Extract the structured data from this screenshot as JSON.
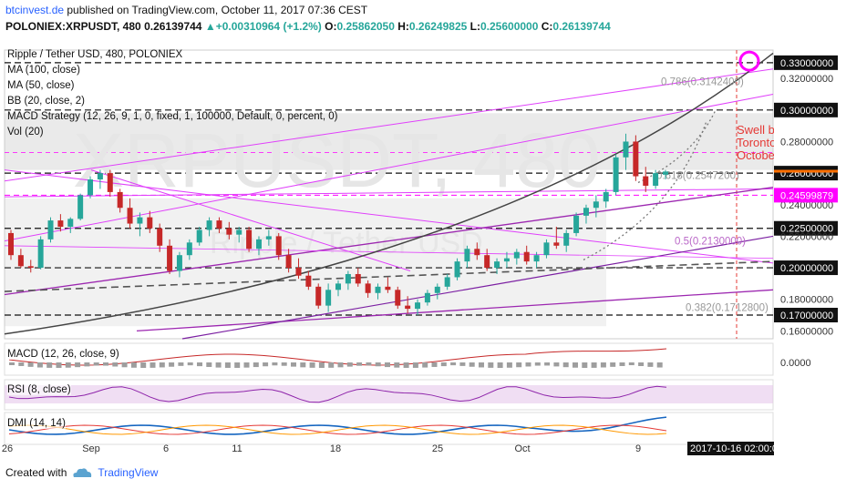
{
  "header": {
    "site": "btcinvest.de",
    "published": " published on TradingView.com, October 11, 2017 07:36 CEST",
    "symbol": "POLONIEX:XRPUSDT, 480",
    "last": "0.26139744",
    "change": "+0.00310964 (+1.2%)",
    "o_label": "O:",
    "o": "0.25862050",
    "h_label": "H:",
    "h": "0.26249825",
    "l_label": "L:",
    "l": "0.25600000",
    "c_label": "C:",
    "c": "0.26139744"
  },
  "overlays": [
    "Ripple / Tether USD, 480, POLONIEX",
    "MA (100, close)",
    "MA (50, close)",
    "BB (20, close, 2)",
    "MACD Strategy (12, 26, 9, 1, 0, fixed, 1, 100000, Default, 0, percent, 0)",
    "Vol (20)"
  ],
  "watermark": {
    "main": "XRPUSDT, 480",
    "sub": "Ripple / Tether USD"
  },
  "fib_labels": [
    "0.786(0.3142400)",
    "0.618(0.2547200)",
    "0.5(0.2130000)",
    "0.382(0.1712800)"
  ],
  "note_text": [
    "Swell b",
    "Toronto",
    "Octobe"
  ],
  "indicators": {
    "macd": "MACD (12, 26, close, 9)",
    "rsi": "RSI (8, close)",
    "dmi": "DMI (14, 14)"
  },
  "macd_axis": "0.0000",
  "time_label": "2017-10-16 02:00:0",
  "footer": {
    "created": "Created with",
    "brand": "TradingView"
  },
  "colors": {
    "up": "#26a69a",
    "down": "#c62828",
    "fib": "#ff00ff",
    "note": "#e53935",
    "accent": "#ff6f00"
  },
  "chart_data": {
    "type": "candlestick",
    "y_axis_ticks": [
      "0.33000000",
      "0.32000000",
      "0.30000000",
      "0.28000000",
      "0.26000000",
      "0.24000000",
      "0.22500000",
      "0.22000000",
      "0.20000000",
      "0.18000000",
      "0.17000000",
      "0.16000000"
    ],
    "price_marker": "0.24599879",
    "x_ticks": [
      "26",
      "Sep",
      "6",
      "11",
      "18",
      "25",
      "Oct",
      "9"
    ],
    "ylim": [
      0.155,
      0.338
    ],
    "candles": [
      [
        0.222,
        0.224,
        0.205,
        0.208
      ],
      [
        0.208,
        0.212,
        0.2,
        0.201
      ],
      [
        0.201,
        0.205,
        0.197,
        0.2
      ],
      [
        0.2,
        0.22,
        0.199,
        0.218
      ],
      [
        0.218,
        0.232,
        0.216,
        0.23
      ],
      [
        0.23,
        0.234,
        0.223,
        0.226
      ],
      [
        0.226,
        0.232,
        0.222,
        0.231
      ],
      [
        0.231,
        0.247,
        0.23,
        0.246
      ],
      [
        0.246,
        0.258,
        0.244,
        0.256
      ],
      [
        0.256,
        0.262,
        0.25,
        0.26
      ],
      [
        0.26,
        0.262,
        0.245,
        0.248
      ],
      [
        0.248,
        0.25,
        0.235,
        0.238
      ],
      [
        0.238,
        0.244,
        0.225,
        0.228
      ],
      [
        0.228,
        0.235,
        0.22,
        0.232
      ],
      [
        0.232,
        0.236,
        0.222,
        0.225
      ],
      [
        0.225,
        0.228,
        0.21,
        0.214
      ],
      [
        0.214,
        0.218,
        0.196,
        0.198
      ],
      [
        0.198,
        0.21,
        0.194,
        0.208
      ],
      [
        0.208,
        0.218,
        0.205,
        0.216
      ],
      [
        0.216,
        0.226,
        0.214,
        0.224
      ],
      [
        0.224,
        0.232,
        0.22,
        0.23
      ],
      [
        0.23,
        0.232,
        0.222,
        0.225
      ],
      [
        0.225,
        0.229,
        0.218,
        0.221
      ],
      [
        0.221,
        0.226,
        0.216,
        0.224
      ],
      [
        0.224,
        0.226,
        0.21,
        0.212
      ],
      [
        0.212,
        0.22,
        0.208,
        0.218
      ],
      [
        0.218,
        0.224,
        0.214,
        0.22
      ],
      [
        0.22,
        0.222,
        0.205,
        0.208
      ],
      [
        0.208,
        0.212,
        0.197,
        0.2
      ],
      [
        0.2,
        0.206,
        0.193,
        0.195
      ],
      [
        0.195,
        0.198,
        0.186,
        0.188
      ],
      [
        0.188,
        0.19,
        0.174,
        0.176
      ],
      [
        0.176,
        0.19,
        0.172,
        0.186
      ],
      [
        0.186,
        0.192,
        0.182,
        0.19
      ],
      [
        0.19,
        0.198,
        0.186,
        0.196
      ],
      [
        0.196,
        0.2,
        0.188,
        0.19
      ],
      [
        0.19,
        0.192,
        0.181,
        0.184
      ],
      [
        0.184,
        0.19,
        0.18,
        0.188
      ],
      [
        0.188,
        0.194,
        0.184,
        0.186
      ],
      [
        0.186,
        0.188,
        0.174,
        0.176
      ],
      [
        0.176,
        0.182,
        0.171,
        0.174
      ],
      [
        0.174,
        0.18,
        0.17,
        0.178
      ],
      [
        0.178,
        0.186,
        0.176,
        0.184
      ],
      [
        0.184,
        0.19,
        0.18,
        0.188
      ],
      [
        0.188,
        0.196,
        0.186,
        0.194
      ],
      [
        0.194,
        0.206,
        0.192,
        0.204
      ],
      [
        0.204,
        0.214,
        0.2,
        0.212
      ],
      [
        0.212,
        0.216,
        0.205,
        0.208
      ],
      [
        0.208,
        0.212,
        0.198,
        0.2
      ],
      [
        0.2,
        0.206,
        0.196,
        0.204
      ],
      [
        0.204,
        0.21,
        0.2,
        0.206
      ],
      [
        0.206,
        0.212,
        0.202,
        0.21
      ],
      [
        0.21,
        0.214,
        0.202,
        0.204
      ],
      [
        0.204,
        0.21,
        0.2,
        0.208
      ],
      [
        0.208,
        0.218,
        0.206,
        0.216
      ],
      [
        0.216,
        0.226,
        0.212,
        0.214
      ],
      [
        0.214,
        0.224,
        0.21,
        0.222
      ],
      [
        0.222,
        0.235,
        0.22,
        0.233
      ],
      [
        0.233,
        0.24,
        0.228,
        0.238
      ],
      [
        0.238,
        0.246,
        0.232,
        0.242
      ],
      [
        0.242,
        0.25,
        0.238,
        0.248
      ],
      [
        0.248,
        0.272,
        0.246,
        0.27
      ],
      [
        0.27,
        0.285,
        0.262,
        0.28
      ],
      [
        0.28,
        0.284,
        0.255,
        0.258
      ],
      [
        0.258,
        0.264,
        0.248,
        0.252
      ],
      [
        0.252,
        0.262,
        0.25,
        0.26
      ],
      [
        0.259,
        0.262,
        0.256,
        0.261
      ]
    ]
  }
}
